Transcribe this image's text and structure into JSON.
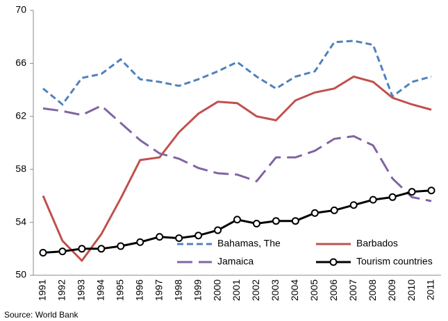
{
  "chart_data": {
    "type": "line",
    "categories": [
      "1991",
      "1992",
      "1993",
      "1994",
      "1995",
      "1996",
      "1997",
      "1998",
      "1999",
      "2000",
      "2001",
      "2002",
      "2003",
      "2004",
      "2005",
      "2006",
      "2007",
      "2008",
      "2009",
      "2010",
      "2011"
    ],
    "series": [
      {
        "name": "Bahamas, The",
        "color": "#4f81bd",
        "line_style": "dashed",
        "values": [
          64.1,
          62.9,
          64.9,
          65.2,
          66.3,
          64.8,
          64.6,
          64.3,
          64.8,
          65.4,
          66.1,
          65.0,
          64.1,
          65.0,
          65.4,
          67.6,
          67.7,
          67.4,
          63.5,
          64.6,
          65.0
        ]
      },
      {
        "name": "Barbados",
        "color": "#c0504d",
        "line_style": "solid",
        "values": [
          56.0,
          52.6,
          51.1,
          53.1,
          55.8,
          58.7,
          58.9,
          60.8,
          62.2,
          63.1,
          63.0,
          62.0,
          61.7,
          63.2,
          63.8,
          64.1,
          65.0,
          64.6,
          63.4,
          62.9,
          62.5
        ]
      },
      {
        "name": "Jamaica",
        "color": "#8064a2",
        "line_style": "longdash",
        "values": [
          62.6,
          62.4,
          62.1,
          62.8,
          61.5,
          60.2,
          59.2,
          58.8,
          58.1,
          57.7,
          57.6,
          57.1,
          58.9,
          58.9,
          59.4,
          60.3,
          60.5,
          59.8,
          57.3,
          55.9,
          55.6
        ]
      },
      {
        "name": "Tourism countries",
        "color": "#000000",
        "line_style": "solid",
        "marker": "circle",
        "values": [
          51.7,
          51.8,
          52.0,
          52.0,
          52.2,
          52.5,
          52.9,
          52.8,
          53.0,
          53.4,
          54.2,
          53.9,
          54.1,
          54.1,
          54.7,
          54.9,
          55.3,
          55.7,
          55.9,
          56.3,
          56.4
        ]
      }
    ],
    "ylim": [
      50,
      70
    ],
    "yticks": [
      50,
      54,
      58,
      62,
      66,
      70
    ],
    "grid": false,
    "legend": "bottom",
    "source": "Source: World Bank"
  }
}
